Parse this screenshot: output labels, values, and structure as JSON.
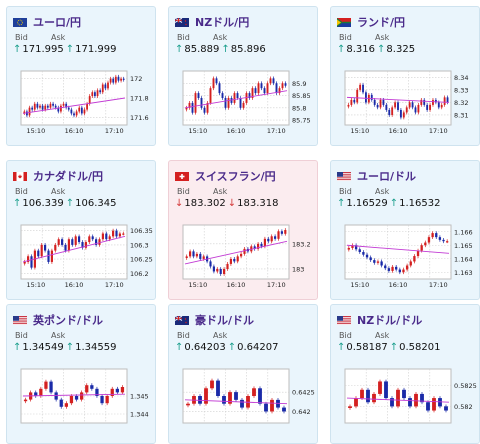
{
  "colors": {
    "bull": "#d42020",
    "bear": "#1a2aa8",
    "ma": "#c23bd4",
    "grid": "#cfcfcf",
    "arrow_up": "#1a9e8c",
    "arrow_down": "#d43a3a"
  },
  "labels": {
    "bid": "Bid",
    "ask": "Ask"
  },
  "cards": [
    {
      "title": "ユーロ/円",
      "flag": "eu",
      "trend": "up",
      "bid": "171.995",
      "ask": "171.999",
      "yticks": [
        "172",
        "171.8",
        "171.6"
      ],
      "yvals": [
        172.0,
        171.8,
        171.6
      ],
      "ylim": [
        171.52,
        172.08
      ],
      "xticks": [
        "15:10",
        "16:10",
        "17:10"
      ],
      "closes": [
        171.66,
        171.62,
        171.7,
        171.68,
        171.74,
        171.7,
        171.72,
        171.68,
        171.72,
        171.7,
        171.74,
        171.72,
        171.7,
        171.66,
        171.72,
        171.74,
        171.7,
        171.68,
        171.64,
        171.62,
        171.66,
        171.7,
        171.64,
        171.68,
        171.74,
        171.82,
        171.86,
        171.82,
        171.88,
        171.86,
        171.94,
        171.9,
        171.96,
        172.0,
        171.96,
        172.02,
        171.98,
        172.0,
        171.99
      ],
      "ma": [
        171.64,
        171.8
      ]
    },
    {
      "title": "NZドル/円",
      "flag": "nz",
      "trend": "up",
      "bid": "85.889",
      "ask": "85.896",
      "yticks": [
        "85.9",
        "85.85",
        "85.8",
        "85.75"
      ],
      "yvals": [
        85.9,
        85.85,
        85.8,
        85.75
      ],
      "ylim": [
        85.73,
        85.95
      ],
      "xticks": [
        "15:10",
        "16:10",
        "17:10"
      ],
      "closes": [
        85.8,
        85.82,
        85.78,
        85.86,
        85.84,
        85.8,
        85.78,
        85.82,
        85.88,
        85.92,
        85.9,
        85.86,
        85.84,
        85.8,
        85.84,
        85.82,
        85.86,
        85.84,
        85.8,
        85.82,
        85.86,
        85.84,
        85.88,
        85.86,
        85.9,
        85.88,
        85.86,
        85.9,
        85.92,
        85.9,
        85.86,
        85.88,
        85.9,
        85.89
      ],
      "ma": [
        85.8,
        85.87
      ]
    },
    {
      "title": "ランド/円",
      "flag": "za",
      "trend": "up",
      "bid": "8.316",
      "ask": "8.325",
      "yticks": [
        "8.34",
        "8.33",
        "8.32",
        "8.31"
      ],
      "yvals": [
        8.34,
        8.33,
        8.32,
        8.31
      ],
      "ylim": [
        8.302,
        8.345
      ],
      "xticks": [
        "15:10",
        "16:10",
        "17:10"
      ],
      "closes": [
        8.318,
        8.322,
        8.32,
        8.33,
        8.334,
        8.328,
        8.32,
        8.326,
        8.322,
        8.318,
        8.316,
        8.322,
        8.318,
        8.314,
        8.31,
        8.316,
        8.32,
        8.314,
        8.308,
        8.312,
        8.316,
        8.32,
        8.316,
        8.312,
        8.318,
        8.322,
        8.318,
        8.314,
        8.318,
        8.322,
        8.32,
        8.316,
        8.318,
        8.324,
        8.32
      ],
      "ma": [
        8.324,
        8.32
      ]
    },
    {
      "title": "カナダドル/円",
      "flag": "ca",
      "trend": "up",
      "bid": "106.339",
      "ask": "106.345",
      "yticks": [
        "106.35",
        "106.3",
        "106.25",
        "106.2"
      ],
      "yvals": [
        106.35,
        106.3,
        106.25,
        106.2
      ],
      "ylim": [
        106.18,
        106.37
      ],
      "xticks": [
        "15:10",
        "16:10",
        "17:10"
      ],
      "closes": [
        106.24,
        106.26,
        106.22,
        106.28,
        106.26,
        106.3,
        106.28,
        106.24,
        106.28,
        106.3,
        106.32,
        106.3,
        106.28,
        106.32,
        106.3,
        106.33,
        106.31,
        106.29,
        106.31,
        106.33,
        106.32,
        106.3,
        106.32,
        106.34,
        106.32,
        106.33,
        106.35,
        106.33,
        106.34,
        106.34
      ],
      "ma": [
        106.24,
        106.33
      ]
    },
    {
      "title": "スイスフラン/円",
      "flag": "ch",
      "trend": "down",
      "bid": "183.302",
      "ask": "183.318",
      "yticks": [
        "183.2",
        "183"
      ],
      "yvals": [
        183.2,
        183.0
      ],
      "ylim": [
        182.92,
        183.35
      ],
      "xticks": [
        "15:10",
        "16:10",
        "17:10"
      ],
      "closes": [
        183.1,
        183.14,
        183.1,
        183.12,
        183.08,
        183.1,
        183.06,
        183.02,
        182.98,
        183.0,
        182.96,
        183.0,
        183.04,
        183.08,
        183.06,
        183.1,
        183.12,
        183.16,
        183.14,
        183.18,
        183.16,
        183.2,
        183.18,
        183.24,
        183.22,
        183.26,
        183.24,
        183.3,
        183.28,
        183.31
      ],
      "ma": [
        183.04,
        183.22
      ]
    },
    {
      "title": "ユーロ/ドル",
      "flag": "us",
      "trend": "up",
      "bid": "1.16529",
      "ask": "1.16532",
      "yticks": [
        "1.166",
        "1.165",
        "1.164",
        "1.163"
      ],
      "yvals": [
        1.166,
        1.165,
        1.164,
        1.163
      ],
      "ylim": [
        1.1625,
        1.1665
      ],
      "xticks": [
        "15:10",
        "16:10",
        "17:10"
      ],
      "closes": [
        1.1648,
        1.165,
        1.1647,
        1.1645,
        1.1643,
        1.1641,
        1.1639,
        1.1637,
        1.1638,
        1.1635,
        1.1633,
        1.1631,
        1.1634,
        1.1632,
        1.163,
        1.1632,
        1.1635,
        1.1638,
        1.1642,
        1.1646,
        1.165,
        1.1652,
        1.1656,
        1.1659,
        1.1656,
        1.1654,
        1.1653,
        1.1653
      ],
      "ma": [
        1.165,
        1.1644
      ]
    },
    {
      "title": "英ポンド/ドル",
      "flag": "us",
      "trend": "up",
      "bid": "1.34549",
      "ask": "1.34559",
      "yticks": [
        "1.345",
        "1.344"
      ],
      "yvals": [
        1.345,
        1.344
      ],
      "ylim": [
        1.3435,
        1.3465
      ],
      "xticks": [],
      "closes": [
        1.3448,
        1.3452,
        1.345,
        1.3454,
        1.3458,
        1.3452,
        1.3448,
        1.3444,
        1.3446,
        1.345,
        1.3448,
        1.3452,
        1.3456,
        1.3454,
        1.345,
        1.3446,
        1.345,
        1.3454,
        1.3452,
        1.3455
      ],
      "ma": [
        1.345,
        1.3451
      ]
    },
    {
      "title": "豪ドル/ドル",
      "flag": "au",
      "trend": "up",
      "bid": "0.64203",
      "ask": "0.64207",
      "yticks": [
        "0.6425",
        "0.642"
      ],
      "yvals": [
        0.6425,
        0.642
      ],
      "ylim": [
        0.6417,
        0.6431
      ],
      "xticks": [],
      "closes": [
        0.6422,
        0.6424,
        0.6422,
        0.6426,
        0.6428,
        0.6424,
        0.6422,
        0.6425,
        0.6423,
        0.6421,
        0.6424,
        0.6426,
        0.6422,
        0.642,
        0.6423,
        0.6421,
        0.642
      ],
      "ma": [
        0.6423,
        0.6422
      ]
    },
    {
      "title": "NZドル/ドル",
      "flag": "us",
      "trend": "up",
      "bid": "0.58187",
      "ask": "0.58201",
      "yticks": [
        "0.5825",
        "0.582"
      ],
      "yvals": [
        0.5825,
        0.582
      ],
      "ylim": [
        0.5816,
        0.5829
      ],
      "xticks": [],
      "closes": [
        0.582,
        0.5822,
        0.5824,
        0.5821,
        0.5823,
        0.5826,
        0.5822,
        0.582,
        0.5824,
        0.5822,
        0.582,
        0.5823,
        0.5821,
        0.5819,
        0.5822,
        0.582,
        0.5819
      ],
      "ma": [
        0.5822,
        0.5821
      ]
    }
  ]
}
